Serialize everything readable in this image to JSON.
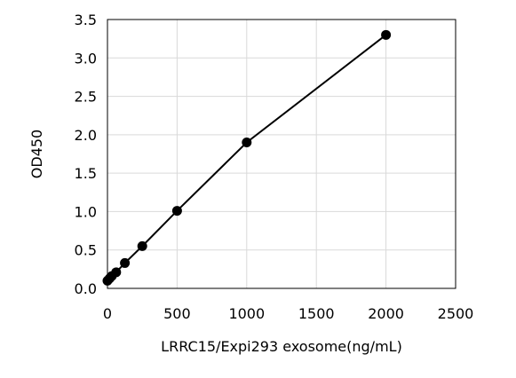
{
  "chart_data": {
    "type": "line",
    "title": "",
    "xlabel": "LRRC15/Expi293 exosome(ng/mL)",
    "ylabel": "OD450",
    "xlim": [
      0,
      2500
    ],
    "ylim": [
      0,
      3.5
    ],
    "x_ticks": [
      "0",
      "500",
      "1000",
      "1500",
      "2000",
      "2500"
    ],
    "y_ticks": [
      "0.0",
      "0.5",
      "1.0",
      "1.5",
      "2.0",
      "2.5",
      "3.0",
      "3.5"
    ],
    "grid": true,
    "legend": "none",
    "series": [
      {
        "x": [
          0,
          15.6,
          31.3,
          62.5,
          125,
          250,
          500,
          1000,
          2000
        ],
        "y": [
          0.1,
          0.13,
          0.16,
          0.21,
          0.33,
          0.55,
          1.01,
          1.9,
          3.3
        ]
      }
    ],
    "colors": {
      "line": "#000000",
      "marker": "#000000",
      "grid": "#d9d9d9",
      "axis": "#000000"
    }
  }
}
